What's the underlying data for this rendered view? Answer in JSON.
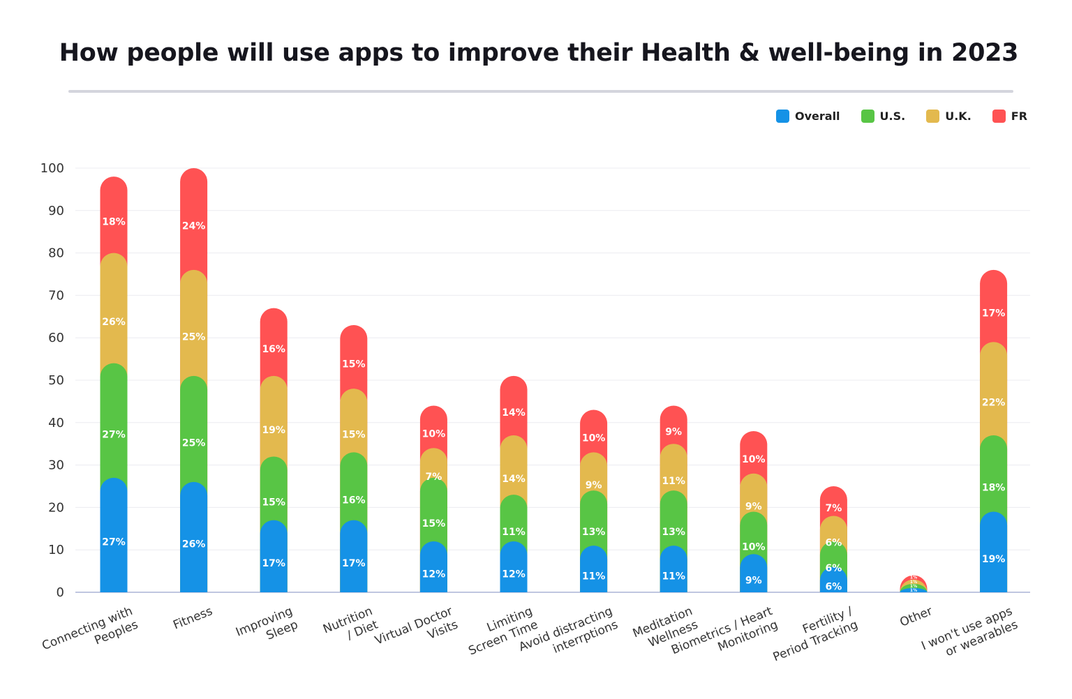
{
  "chart_data": {
    "type": "bar",
    "stacked": true,
    "title": "How people will use apps to improve their Health & well-being in 2023",
    "categories": [
      [
        "Connecting with",
        "Peoples"
      ],
      [
        "Fitness"
      ],
      [
        "Improving",
        "Sleep"
      ],
      [
        "Nutrition",
        "/ Diet"
      ],
      [
        "Virtual Doctor",
        "Visits"
      ],
      [
        "Limiting",
        "Screen Time"
      ],
      [
        "Avoid distracting",
        "interrptions"
      ],
      [
        "Meditation",
        "Wellness"
      ],
      [
        "Biometrics / Heart",
        "Monitoring"
      ],
      [
        "Fertility /",
        "Period Tracking"
      ],
      [
        "Other"
      ],
      [
        "I won't use apps",
        "or wearables"
      ]
    ],
    "series": [
      {
        "name": "Overall",
        "color": "#1592e6",
        "values": [
          27,
          26,
          17,
          17,
          12,
          12,
          11,
          11,
          9,
          6,
          1,
          19
        ]
      },
      {
        "name": "U.S.",
        "color": "#58c545",
        "values": [
          27,
          25,
          15,
          16,
          15,
          11,
          13,
          13,
          10,
          6,
          1,
          18
        ]
      },
      {
        "name": "U.K.",
        "color": "#e3b94e",
        "values": [
          26,
          25,
          19,
          15,
          7,
          14,
          9,
          11,
          9,
          6,
          1,
          22
        ]
      },
      {
        "name": "FR",
        "color": "#ff5253",
        "values": [
          18,
          24,
          16,
          15,
          10,
          14,
          10,
          9,
          10,
          7,
          1,
          17
        ]
      }
    ],
    "value_suffix": "%",
    "ylim": [
      0,
      100
    ],
    "yticks": [
      0,
      10,
      20,
      30,
      40,
      50,
      60,
      70,
      80,
      90,
      100
    ],
    "grid": true,
    "legend_position": "top-right"
  }
}
